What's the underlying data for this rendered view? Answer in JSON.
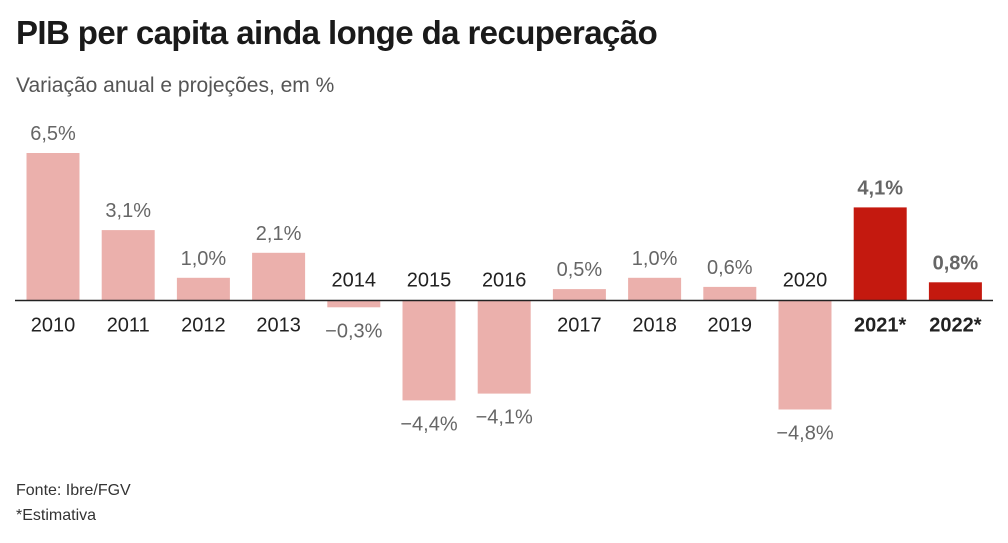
{
  "header": {
    "title": "PIB per capita ainda longe da recuperação",
    "subtitle": "Variação anual e projeções, em %"
  },
  "footer": {
    "source": "Fonte: Ibre/FGV",
    "note": "*Estimativa"
  },
  "colors": {
    "historical": "#ebb0ac",
    "estimate": "#c4190f",
    "axis": "#222222",
    "value_label": "#666666",
    "category_label": "#222222"
  },
  "chart_data": {
    "type": "bar",
    "title": "PIB per capita ainda longe da recuperação",
    "subtitle": "Variação anual e projeções, em %",
    "xlabel": "",
    "ylabel": "",
    "ylim": [
      -4.8,
      6.5
    ],
    "grid": false,
    "categories": [
      "2010",
      "2011",
      "2012",
      "2013",
      "2014",
      "2015",
      "2016",
      "2017",
      "2018",
      "2019",
      "2020",
      "2021*",
      "2022*"
    ],
    "values": [
      6.5,
      3.1,
      1.0,
      2.1,
      -0.3,
      -4.4,
      -4.1,
      0.5,
      1.0,
      0.6,
      -4.8,
      4.1,
      0.8
    ],
    "value_labels": [
      "6,5%",
      "3,1%",
      "1,0%",
      "2,1%",
      "−0,3%",
      "−4,4%",
      "−4,1%",
      "0,5%",
      "1,0%",
      "0,6%",
      "−4,8%",
      "4,1%",
      "0,8%"
    ],
    "estimate": [
      false,
      false,
      false,
      false,
      false,
      false,
      false,
      false,
      false,
      false,
      false,
      true,
      true
    ]
  }
}
